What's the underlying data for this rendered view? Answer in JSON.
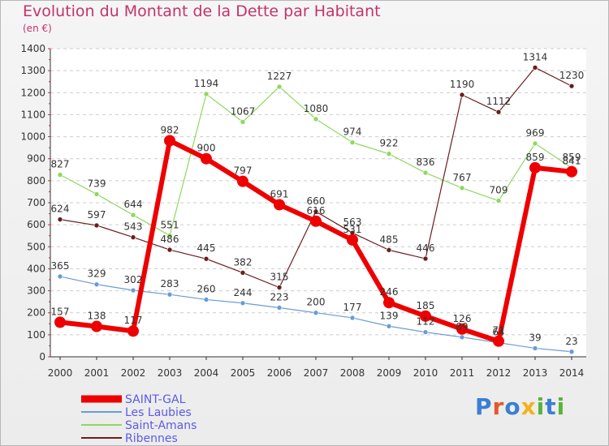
{
  "title": "Evolution du Montant de la Dette par Habitant",
  "subtitle": "(en €)",
  "logo": "Proxiti",
  "colors": {
    "title": "#c4336b",
    "legend_text": "#5b5be8",
    "axis": "#333333",
    "grid": "#cccccc",
    "plot_bg": "#ffffff"
  },
  "chart_data": {
    "type": "line",
    "title": "Evolution du Montant de la Dette par Habitant",
    "subtitle": "(en €)",
    "xlabel": "",
    "ylabel": "",
    "x": [
      "2000",
      "2001",
      "2002",
      "2003",
      "2004",
      "2005",
      "2006",
      "2007",
      "2008",
      "2009",
      "2010",
      "2011",
      "2012",
      "2013",
      "2014"
    ],
    "ylim": [
      0,
      1400
    ],
    "yticks": [
      0,
      100,
      200,
      300,
      400,
      500,
      600,
      700,
      800,
      900,
      1000,
      1100,
      1200,
      1300,
      1400
    ],
    "grid": "horizontal-dashed",
    "legend_position": "bottom-left",
    "series": [
      {
        "name": "SAINT-GAL",
        "color": "#ee0000",
        "width": 6,
        "marker": 7,
        "values": [
          157,
          138,
          117,
          982,
          900,
          797,
          691,
          616,
          531,
          246,
          185,
          126,
          71,
          859,
          841
        ]
      },
      {
        "name": "Les Laubies",
        "color": "#6a9bd6",
        "width": 1.2,
        "marker": 3,
        "values": [
          365,
          329,
          302,
          283,
          260,
          244,
          223,
          200,
          177,
          139,
          112,
          89,
          64,
          39,
          23
        ]
      },
      {
        "name": "Saint-Amans",
        "color": "#8fd860",
        "width": 1.2,
        "marker": 3,
        "values": [
          827,
          739,
          644,
          551,
          1194,
          1067,
          1227,
          1080,
          974,
          922,
          836,
          767,
          709,
          969,
          859
        ]
      },
      {
        "name": "Ribennes",
        "color": "#6b1d1d",
        "width": 1.2,
        "marker": 3,
        "values": [
          624,
          597,
          543,
          486,
          445,
          382,
          315,
          660,
          563,
          485,
          446,
          1190,
          1112,
          1314,
          1230
        ]
      }
    ]
  }
}
